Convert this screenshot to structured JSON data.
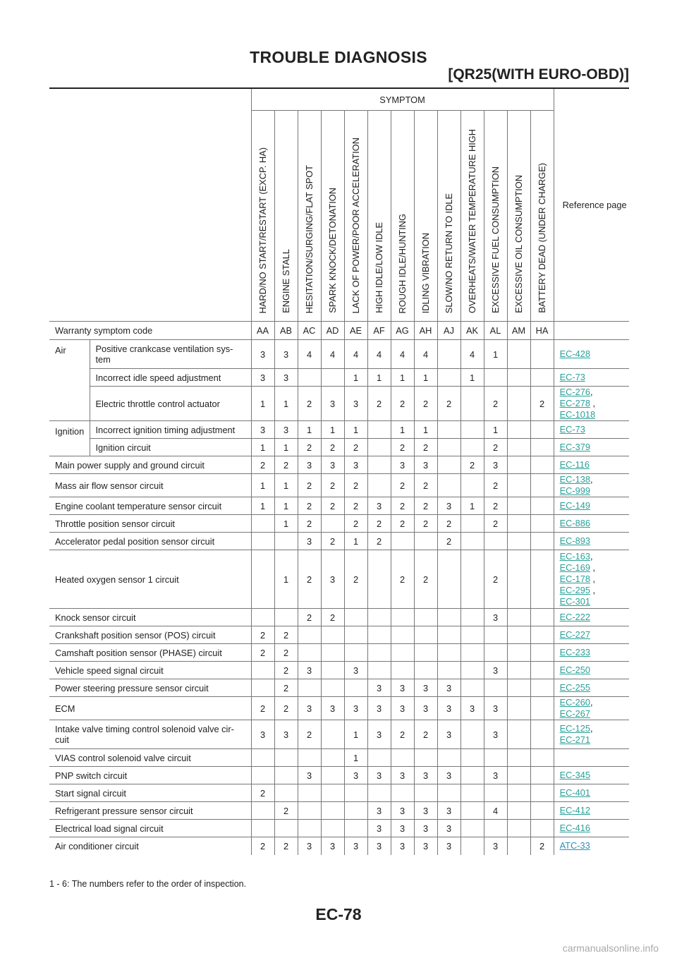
{
  "header": {
    "title": "TROUBLE DIAGNOSIS",
    "subtitle": "[QR25(WITH EURO-OBD)]"
  },
  "table": {
    "symptom_label": "SYMPTOM",
    "reference_label": "Reference page",
    "symptoms": [
      "HARD/NO START/RESTART (EXCP. HA)",
      "ENGINE STALL",
      "HESITATION/SURGING/FLAT SPOT",
      "SPARK KNOCK/DETONATION",
      "LACK OF POWER/POOR ACCELERATION",
      "HIGH IDLE/LOW IDLE",
      "ROUGH IDLE/HUNTING",
      "IDLING VIBRATION",
      "SLOW/NO RETURN TO IDLE",
      "OVERHEATS/WATER TEMPERATURE HIGH",
      "EXCESSIVE FUEL CONSUMPTION",
      "EXCESSIVE OIL CONSUMPTION",
      "BATTERY DEAD (UNDER CHARGE)"
    ],
    "warranty_label": "Warranty symptom code",
    "codes": [
      "AA",
      "AB",
      "AC",
      "AD",
      "AE",
      "AF",
      "AG",
      "AH",
      "AJ",
      "AK",
      "AL",
      "AM",
      "HA"
    ],
    "rows": [
      {
        "group": "Air",
        "label": "Positive crankcase ventilation sys-\ntem",
        "values": [
          "3",
          "3",
          "4",
          "4",
          "4",
          "4",
          "4",
          "4",
          "",
          "4",
          "1",
          "",
          ""
        ],
        "refs": [
          "EC-428"
        ]
      },
      {
        "group": "",
        "label": "Incorrect idle speed adjustment",
        "values": [
          "3",
          "3",
          "",
          "",
          "1",
          "1",
          "1",
          "1",
          "",
          "1",
          "",
          "",
          ""
        ],
        "refs": [
          "EC-73"
        ]
      },
      {
        "group": "",
        "label": "Electric throttle control actuator",
        "values": [
          "1",
          "1",
          "2",
          "3",
          "3",
          "2",
          "2",
          "2",
          "2",
          "",
          "2",
          "",
          "2"
        ],
        "refs": [
          "EC-276,",
          "EC-278 ,",
          "EC-1018"
        ]
      },
      {
        "group": "Ignition",
        "label": "Incorrect ignition timing adjustment",
        "values": [
          "3",
          "3",
          "1",
          "1",
          "1",
          "",
          "1",
          "1",
          "",
          "",
          "1",
          "",
          ""
        ],
        "refs": [
          "EC-73"
        ]
      },
      {
        "group": "",
        "label": "Ignition circuit",
        "values": [
          "1",
          "1",
          "2",
          "2",
          "2",
          "",
          "2",
          "2",
          "",
          "",
          "2",
          "",
          ""
        ],
        "refs": [
          "EC-379"
        ]
      },
      {
        "group": "",
        "label": "Main power supply and ground circuit",
        "values": [
          "2",
          "2",
          "3",
          "3",
          "3",
          "",
          "3",
          "3",
          "",
          "2",
          "3",
          "",
          ""
        ],
        "refs": [
          "EC-116"
        ]
      },
      {
        "group": "",
        "label": "Mass air flow sensor circuit",
        "values": [
          "1",
          "1",
          "2",
          "2",
          "2",
          "",
          "2",
          "2",
          "",
          "",
          "2",
          "",
          ""
        ],
        "refs": [
          "EC-138,",
          "EC-999"
        ]
      },
      {
        "group": "",
        "label": "Engine coolant temperature sensor circuit",
        "values": [
          "1",
          "1",
          "2",
          "2",
          "2",
          "3",
          "2",
          "2",
          "3",
          "1",
          "2",
          "",
          ""
        ],
        "refs": [
          "EC-149"
        ]
      },
      {
        "group": "",
        "label": "Throttle position sensor circuit",
        "values": [
          "",
          "1",
          "2",
          "",
          "2",
          "2",
          "2",
          "2",
          "2",
          "",
          "2",
          "",
          ""
        ],
        "refs": [
          "EC-886"
        ]
      },
      {
        "group": "",
        "label": "Accelerator pedal position sensor circuit",
        "values": [
          "",
          "",
          "3",
          "2",
          "1",
          "2",
          "",
          "",
          "2",
          "",
          "",
          "",
          ""
        ],
        "refs": [
          "EC-893"
        ]
      },
      {
        "group": "",
        "label": "Heated oxygen sensor 1 circuit",
        "values": [
          "",
          "1",
          "2",
          "3",
          "2",
          "",
          "2",
          "2",
          "",
          "",
          "2",
          "",
          ""
        ],
        "refs": [
          "EC-163,",
          "EC-169 ,",
          "EC-178 ,",
          "EC-295 ,",
          "EC-301"
        ]
      },
      {
        "group": "",
        "label": "Knock sensor circuit",
        "values": [
          "",
          "",
          "2",
          "2",
          "",
          "",
          "",
          "",
          "",
          "",
          "3",
          "",
          ""
        ],
        "refs": [
          "EC-222"
        ]
      },
      {
        "group": "",
        "label": "Crankshaft position sensor (POS) circuit",
        "values": [
          "2",
          "2",
          "",
          "",
          "",
          "",
          "",
          "",
          "",
          "",
          "",
          "",
          ""
        ],
        "refs": [
          "EC-227"
        ]
      },
      {
        "group": "",
        "label": "Camshaft position sensor (PHASE) circuit",
        "values": [
          "2",
          "2",
          "",
          "",
          "",
          "",
          "",
          "",
          "",
          "",
          "",
          "",
          ""
        ],
        "refs": [
          "EC-233"
        ]
      },
      {
        "group": "",
        "label": "Vehicle speed signal circuit",
        "values": [
          "",
          "2",
          "3",
          "",
          "3",
          "",
          "",
          "",
          "",
          "",
          "3",
          "",
          ""
        ],
        "refs": [
          "EC-250"
        ]
      },
      {
        "group": "",
        "label": "Power steering pressure sensor circuit",
        "values": [
          "",
          "2",
          "",
          "",
          "",
          "3",
          "3",
          "3",
          "3",
          "",
          "",
          "",
          ""
        ],
        "refs": [
          "EC-255"
        ]
      },
      {
        "group": "",
        "label": "ECM",
        "values": [
          "2",
          "2",
          "3",
          "3",
          "3",
          "3",
          "3",
          "3",
          "3",
          "3",
          "3",
          "",
          ""
        ],
        "refs": [
          "EC-260,",
          "EC-267"
        ]
      },
      {
        "group": "",
        "label": "Intake valve timing control solenoid valve cir-\ncuit",
        "values": [
          "3",
          "3",
          "2",
          "",
          "1",
          "3",
          "2",
          "2",
          "3",
          "",
          "3",
          "",
          ""
        ],
        "refs": [
          "EC-125,",
          "EC-271"
        ]
      },
      {
        "group": "",
        "label": "VIAS control solenoid valve circuit",
        "values": [
          "",
          "",
          "",
          "",
          "1",
          "",
          "",
          "",
          "",
          "",
          "",
          "",
          ""
        ],
        "refs": []
      },
      {
        "group": "",
        "label": "PNP switch circuit",
        "values": [
          "",
          "",
          "3",
          "",
          "3",
          "3",
          "3",
          "3",
          "3",
          "",
          "3",
          "",
          ""
        ],
        "refs": [
          "EC-345"
        ]
      },
      {
        "group": "",
        "label": "Start signal circuit",
        "values": [
          "2",
          "",
          "",
          "",
          "",
          "",
          "",
          "",
          "",
          "",
          "",
          "",
          ""
        ],
        "refs": [
          "EC-401"
        ]
      },
      {
        "group": "",
        "label": "Refrigerant pressure sensor circuit",
        "values": [
          "",
          "2",
          "",
          "",
          "",
          "3",
          "3",
          "3",
          "3",
          "",
          "4",
          "",
          ""
        ],
        "refs": [
          "EC-412"
        ]
      },
      {
        "group": "",
        "label": "Electrical load signal circuit",
        "values": [
          "",
          "",
          "",
          "",
          "",
          "3",
          "3",
          "3",
          "3",
          "",
          "",
          "",
          ""
        ],
        "refs": [
          "EC-416"
        ]
      },
      {
        "group": "",
        "label": "Air conditioner circuit",
        "values": [
          "2",
          "2",
          "3",
          "3",
          "3",
          "3",
          "3",
          "3",
          "3",
          "",
          "3",
          "",
          "2"
        ],
        "refs": [
          "ATC-33"
        ]
      }
    ]
  },
  "footnote": "1 - 6: The numbers refer to the order of inspection.",
  "page_number": "EC-78",
  "watermark": "carmanualsonline.info"
}
